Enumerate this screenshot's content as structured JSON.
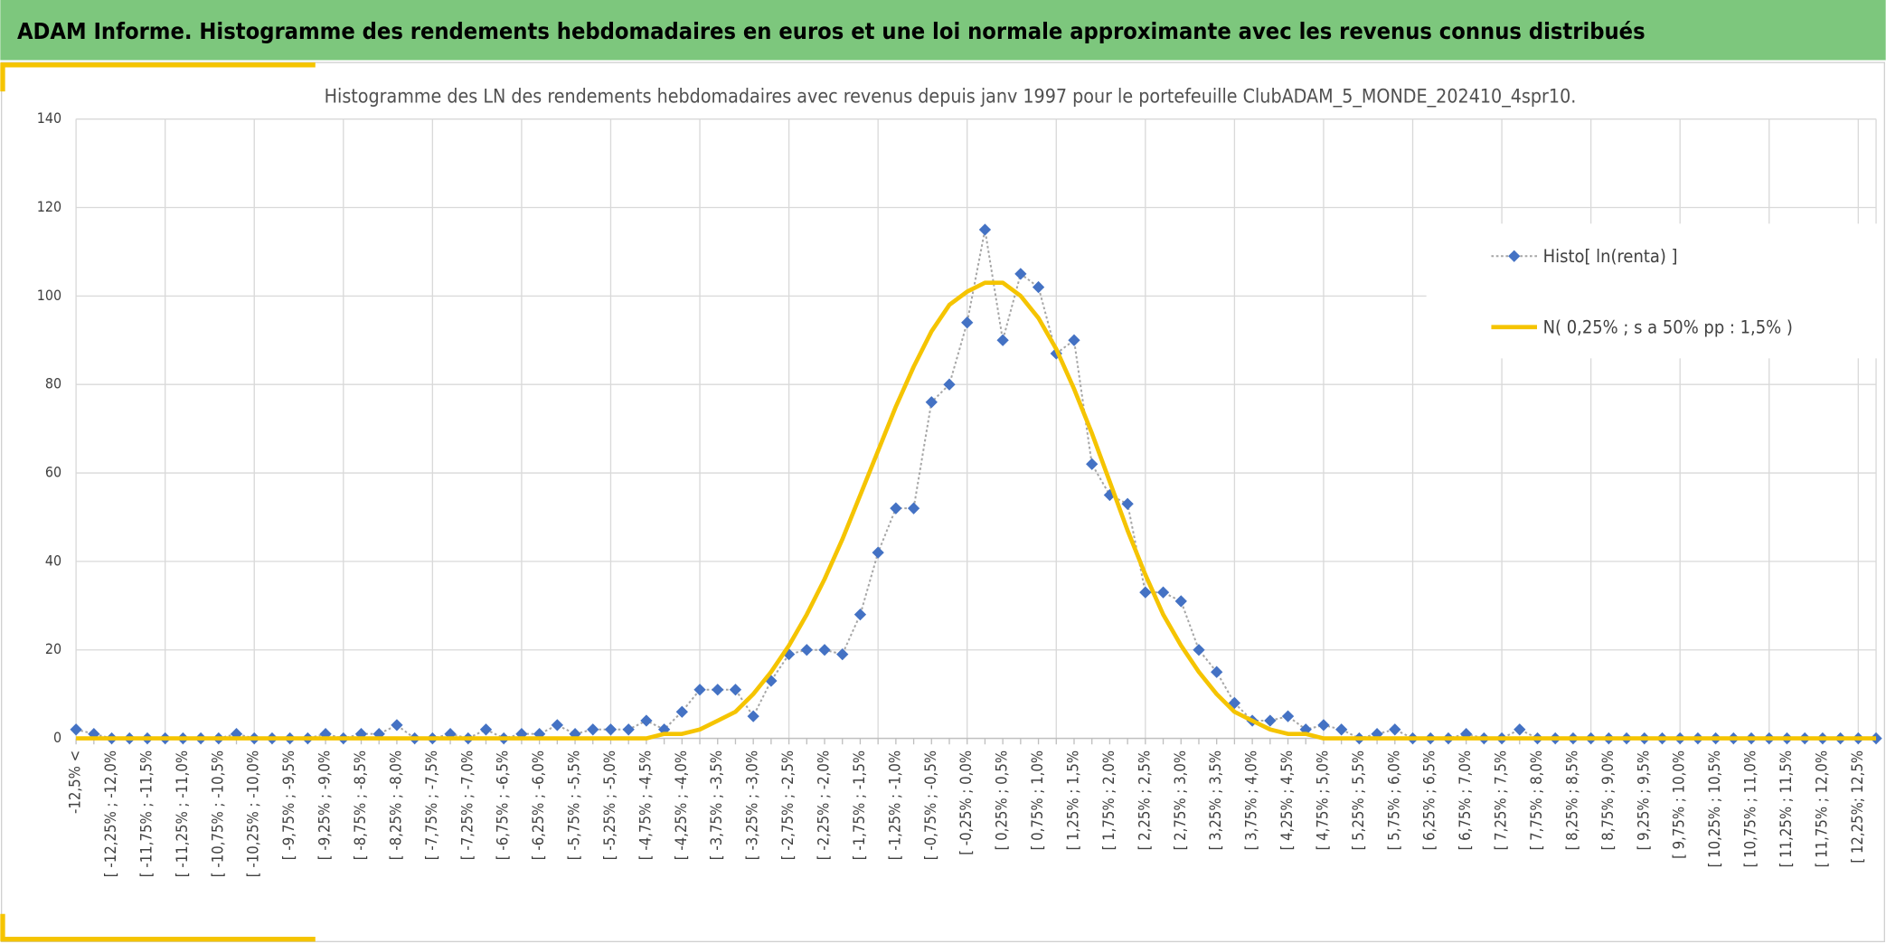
{
  "header_title": "ADAM Informe. Histogramme des rendements hebdomadaires en euros et une loi normale approximante avec les revenus connus distribués",
  "chart_data": {
    "type": "line",
    "title": "Histogramme des LN des rendements hebdomadaires avec revenus depuis janv 1997 pour le portefeuille ClubADAM_5_MONDE_202410_4spr10.",
    "categories": [
      "-12,5% <",
      null,
      "[ -12,25% ; -12,0%",
      null,
      "[ -11,75% ; -11,5%",
      null,
      "[ -11,25% ; -11,0%",
      null,
      "[ -10,75% ; -10,5%",
      null,
      "[ -10,25% ; -10,0%",
      null,
      "[ -9,75% ; -9,5%",
      null,
      "[ -9,25% ; -9,0%",
      null,
      "[ -8,75% ; -8,5%",
      null,
      "[ -8,25% ; -8,0%",
      null,
      "[ -7,75% ; -7,5%",
      null,
      "[ -7,25% ; -7,0%",
      null,
      "[ -6,75% ; -6,5%",
      null,
      "[ -6,25% ; -6,0%",
      null,
      "[ -5,75% ; -5,5%",
      null,
      "[ -5,25% ; -5,0%",
      null,
      "[ -4,75% ; -4,5%",
      null,
      "[ -4,25% ; -4,0%",
      null,
      "[ -3,75% ; -3,5%",
      null,
      "[ -3,25% ; -3,0%",
      null,
      "[ -2,75% ; -2,5%",
      null,
      "[ -2,25% ; -2,0%",
      null,
      "[ -1,75% ; -1,5%",
      null,
      "[ -1,25% ; -1,0%",
      null,
      "[ -0,75% ; -0,5%",
      null,
      "[ -0,25% ; 0,0%",
      null,
      "[ 0,25% ; 0,5%",
      null,
      "[ 0,75% ; 1,0%",
      null,
      "[ 1,25% ; 1,5%",
      null,
      "[ 1,75% ; 2,0%",
      null,
      "[ 2,25% ; 2,5%",
      null,
      "[ 2,75% ; 3,0%",
      null,
      "[ 3,25% ; 3,5%",
      null,
      "[ 3,75% ; 4,0%",
      null,
      "[ 4,25% ; 4,5%",
      null,
      "[ 4,75% ; 5,0%",
      null,
      "[ 5,25% ; 5,5%",
      null,
      "[ 5,75% ; 6,0%",
      null,
      "[ 6,25% ; 6,5%",
      null,
      "[ 6,75% ; 7,0%",
      null,
      "[ 7,25% ; 7,5%",
      null,
      "[ 7,75% ; 8,0%",
      null,
      "[ 8,25% ; 8,5%",
      null,
      "[ 8,75% ; 9,0%",
      null,
      "[ 9,25% ; 9,5%",
      null,
      "[ 9,75% ; 10,0%",
      null,
      "[ 10,25% ; 10,5%",
      null,
      "[ 10,75% ; 11,0%",
      null,
      "[ 11,25% ; 11,5%",
      null,
      "[ 11,75% ; 12,0%",
      null,
      "[ 12,25%; 12,5%",
      null
    ],
    "series": [
      {
        "name": "Histo[ ln(renta) ]",
        "color": "#4472c4",
        "line_color": "#a6a6a6",
        "values": [
          2,
          1,
          0,
          0,
          0,
          0,
          0,
          0,
          0,
          1,
          0,
          0,
          0,
          0,
          1,
          0,
          1,
          1,
          3,
          0,
          0,
          1,
          0,
          2,
          0,
          1,
          1,
          3,
          1,
          2,
          2,
          2,
          4,
          2,
          6,
          11,
          11,
          11,
          5,
          13,
          19,
          20,
          20,
          19,
          28,
          42,
          52,
          52,
          76,
          80,
          94,
          115,
          90,
          105,
          102,
          87,
          90,
          62,
          55,
          53,
          33,
          33,
          31,
          20,
          15,
          8,
          4,
          4,
          5,
          2,
          3,
          2,
          0,
          1,
          2,
          0,
          0,
          0,
          1,
          0,
          0,
          2,
          0,
          0,
          0,
          0,
          0,
          0,
          0,
          0,
          0,
          0,
          0,
          0,
          0,
          0,
          0,
          0,
          0,
          0,
          0,
          0
        ]
      },
      {
        "name": "N( 0,25% ; s a 50% pp : 1,5% )",
        "color": "#f5c400",
        "values": [
          0,
          0,
          0,
          0,
          0,
          0,
          0,
          0,
          0,
          0,
          0,
          0,
          0,
          0,
          0,
          0,
          0,
          0,
          0,
          0,
          0,
          0,
          0,
          0,
          0,
          0,
          0,
          0,
          0,
          0,
          0,
          0,
          0,
          1,
          1,
          2,
          4,
          6,
          10,
          15,
          21,
          28,
          36,
          45,
          55,
          65,
          75,
          84,
          92,
          98,
          101,
          103,
          103,
          100,
          95,
          88,
          79,
          69,
          58,
          47,
          37,
          28,
          21,
          15,
          10,
          6,
          4,
          2,
          1,
          1,
          0,
          0,
          0,
          0,
          0,
          0,
          0,
          0,
          0,
          0,
          0,
          0,
          0,
          0,
          0,
          0,
          0,
          0,
          0,
          0,
          0,
          0,
          0,
          0,
          0,
          0,
          0,
          0,
          0,
          0,
          0,
          0
        ]
      }
    ],
    "ylim": [
      0,
      140
    ],
    "yticks": [
      0,
      20,
      40,
      60,
      80,
      100,
      120,
      140
    ],
    "grid": true,
    "legend": "right"
  }
}
